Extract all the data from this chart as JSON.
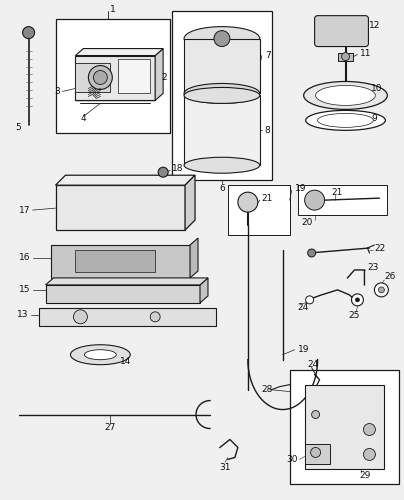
{
  "bg_color": "#f0f0f0",
  "line_color": "#1a1a1a",
  "fig_width": 4.04,
  "fig_height": 5.0,
  "dpi": 100
}
